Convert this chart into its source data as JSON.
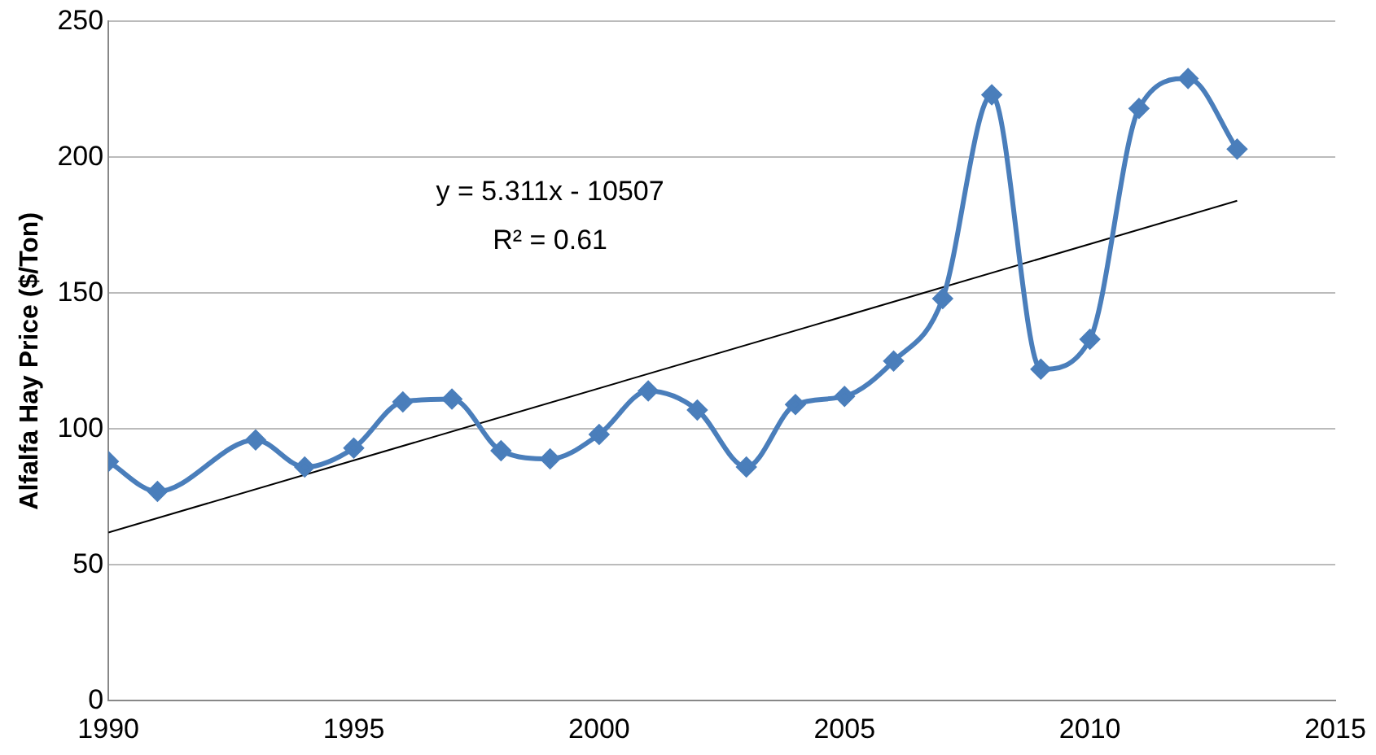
{
  "chart_data": {
    "type": "line",
    "ylabel": "Alfalfa Hay Price ($/Ton)",
    "xlim": [
      1990,
      2015
    ],
    "xticks": [
      1990,
      1995,
      2000,
      2005,
      2010,
      2015
    ],
    "ylim": [
      0,
      250
    ],
    "yticks": [
      0,
      50,
      100,
      150,
      200,
      250
    ],
    "grid": "y",
    "marker": "diamond",
    "line_style": "solid",
    "annotations": [
      "y = 5.311x - 10507",
      "R² = 0.61"
    ],
    "series": [
      {
        "color": "#4a7ebb",
        "x": [
          1990,
          1991,
          1993,
          1994,
          1995,
          1996,
          1997,
          1998,
          1999,
          2000,
          2001,
          2002,
          2003,
          2004,
          2005,
          2006,
          2007,
          2008,
          2009,
          2010,
          2011,
          2012,
          2013
        ],
        "values": [
          88,
          77,
          96,
          86,
          93,
          110,
          111,
          92,
          89,
          98,
          114,
          107,
          86,
          109,
          112,
          125,
          148,
          223,
          122,
          133,
          218,
          229,
          203
        ]
      },
      {
        "type": "line",
        "marker": "none",
        "color": "#000000",
        "x": [
          1990,
          2013
        ],
        "values": [
          61.9,
          184.0
        ]
      }
    ]
  }
}
